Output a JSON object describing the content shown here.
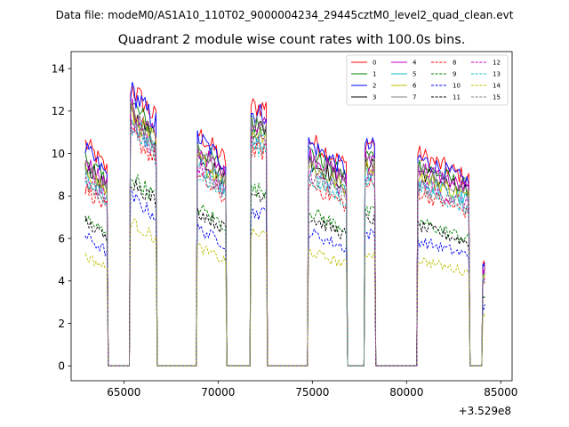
{
  "suptitle": "Data file: modeM0/AS1A10_110T02_9000004234_29445cztM0_level2_quad_clean.evt",
  "chart_data": {
    "type": "line",
    "title": "Quadrant 2 module wise count rates with 100.0s bins.",
    "xlabel": "",
    "ylabel": "",
    "x_offset_label": "+3.529e8",
    "xlim": [
      62200,
      85600
    ],
    "ylim": [
      -0.7,
      14.8
    ],
    "xticks": [
      65000,
      70000,
      75000,
      80000,
      85000
    ],
    "xtick_labels": [
      "65000",
      "70000",
      "75000",
      "80000",
      "85000"
    ],
    "yticks": [
      0,
      2,
      4,
      6,
      8,
      10,
      12,
      14
    ],
    "ytick_labels": [
      "0",
      "2",
      "4",
      "6",
      "8",
      "10",
      "12",
      "14"
    ],
    "legend_position": "upper right",
    "segments": [
      {
        "start": 62950,
        "end": 64100,
        "ends_with_spike": true
      },
      {
        "start": 65350,
        "end": 66700
      },
      {
        "start": 68900,
        "end": 70400
      },
      {
        "start": 71750,
        "end": 72550
      },
      {
        "start": 74800,
        "end": 76800
      },
      {
        "start": 77800,
        "end": 78300
      },
      {
        "start": 80600,
        "end": 83300
      },
      {
        "start": 84050,
        "end": 84150
      }
    ],
    "segment_levels": [
      [
        10.5,
        13.2,
        11.0,
        12.2,
        10.7,
        10.5,
        10.0,
        4.8
      ],
      [
        9.8,
        12.4,
        10.4,
        11.5,
        10.1,
        9.9,
        9.5,
        4.5
      ],
      [
        10.2,
        13.0,
        10.8,
        11.9,
        10.5,
        10.3,
        9.8,
        4.7
      ],
      [
        9.5,
        12.0,
        10.0,
        11.2,
        9.7,
        9.6,
        9.2,
        4.4
      ],
      [
        9.7,
        12.2,
        10.2,
        11.4,
        10.0,
        9.8,
        9.4,
        4.5
      ],
      [
        9.0,
        11.6,
        9.5,
        10.7,
        9.2,
        9.1,
        8.8,
        4.2
      ],
      [
        9.3,
        11.9,
        9.8,
        11.0,
        9.5,
        9.4,
        9.0,
        4.3
      ],
      [
        9.6,
        12.1,
        10.1,
        11.3,
        9.8,
        9.7,
        9.3,
        4.4
      ],
      [
        8.4,
        11.0,
        8.9,
        10.1,
        8.6,
        8.5,
        8.2,
        3.9
      ],
      [
        7.0,
        9.0,
        7.5,
        8.3,
        7.3,
        7.2,
        6.8,
        3.3
      ],
      [
        6.1,
        8.0,
        6.5,
        7.2,
        6.3,
        6.2,
        5.9,
        2.8
      ],
      [
        6.8,
        8.8,
        7.3,
        8.1,
        7.0,
        6.9,
        6.6,
        3.2
      ],
      [
        8.9,
        11.5,
        9.4,
        10.5,
        9.1,
        9.0,
        8.6,
        4.1
      ],
      [
        8.6,
        11.2,
        9.1,
        10.3,
        8.8,
        8.7,
        8.4,
        4.0
      ],
      [
        5.2,
        6.8,
        5.6,
        6.2,
        5.4,
        5.3,
        5.0,
        2.4
      ],
      [
        8.8,
        11.3,
        9.2,
        10.4,
        9.0,
        8.9,
        8.5,
        4.0
      ]
    ],
    "series": [
      {
        "name": "0",
        "color": "#ff0000",
        "style": "solid"
      },
      {
        "name": "1",
        "color": "#008000",
        "style": "solid"
      },
      {
        "name": "2",
        "color": "#0000ff",
        "style": "solid"
      },
      {
        "name": "3",
        "color": "#000000",
        "style": "solid"
      },
      {
        "name": "4",
        "color": "#bf00bf",
        "style": "solid"
      },
      {
        "name": "5",
        "color": "#17becf",
        "style": "solid"
      },
      {
        "name": "6",
        "color": "#bfbf00",
        "style": "solid"
      },
      {
        "name": "7",
        "color": "#7f7f7f",
        "style": "solid"
      },
      {
        "name": "8",
        "color": "#ff0000",
        "style": "dashed"
      },
      {
        "name": "9",
        "color": "#008000",
        "style": "dashed"
      },
      {
        "name": "10",
        "color": "#0000ff",
        "style": "dashed"
      },
      {
        "name": "11",
        "color": "#000000",
        "style": "dashed"
      },
      {
        "name": "12",
        "color": "#bf00bf",
        "style": "dashed"
      },
      {
        "name": "13",
        "color": "#17becf",
        "style": "dashed"
      },
      {
        "name": "14",
        "color": "#bfbf00",
        "style": "dashed"
      },
      {
        "name": "15",
        "color": "#7f7f7f",
        "style": "dashed"
      }
    ]
  }
}
